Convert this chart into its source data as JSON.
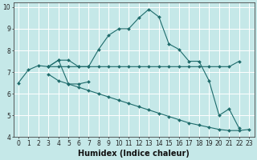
{
  "xlabel": "Humidex (Indice chaleur)",
  "bg_color": "#c5e8e8",
  "line_color": "#1e6b6b",
  "grid_color": "#ffffff",
  "xlim": [
    -0.5,
    23.5
  ],
  "ylim": [
    4,
    10.2
  ],
  "series": [
    {
      "x": [
        0,
        1,
        2,
        3,
        4,
        5,
        6,
        7,
        8,
        9,
        10,
        11,
        12,
        13,
        14,
        15,
        16,
        17,
        18,
        19,
        20,
        21,
        22
      ],
      "y": [
        6.5,
        7.1,
        7.3,
        7.25,
        7.55,
        7.55,
        7.25,
        7.25,
        8.05,
        8.7,
        9.0,
        9.0,
        9.5,
        9.9,
        9.55,
        8.3,
        8.05,
        7.5,
        7.5,
        6.6,
        5.0,
        5.3,
        4.4
      ]
    },
    {
      "x": [
        3,
        4,
        5,
        6,
        7,
        8,
        9,
        10,
        11,
        12,
        13,
        14,
        15,
        16,
        17,
        18,
        19,
        20,
        21,
        22
      ],
      "y": [
        7.25,
        7.25,
        7.25,
        7.25,
        7.25,
        7.25,
        7.25,
        7.25,
        7.25,
        7.25,
        7.25,
        7.25,
        7.25,
        7.25,
        7.25,
        7.25,
        7.25,
        7.25,
        7.25,
        7.5
      ]
    },
    {
      "x": [
        3,
        4,
        5,
        6,
        7,
        8,
        9,
        10,
        11,
        12,
        13,
        14,
        15,
        16,
        17,
        18,
        19,
        20,
        21,
        22,
        23
      ],
      "y": [
        6.9,
        6.6,
        6.45,
        6.3,
        6.15,
        6.0,
        5.85,
        5.7,
        5.55,
        5.4,
        5.25,
        5.1,
        4.95,
        4.8,
        4.65,
        4.55,
        4.45,
        4.35,
        4.3,
        4.3,
        4.35
      ]
    },
    {
      "x": [
        3,
        4,
        5,
        6,
        7
      ],
      "y": [
        7.25,
        7.55,
        6.45,
        6.45,
        6.55
      ]
    }
  ],
  "xtick_vals": [
    0,
    1,
    2,
    3,
    4,
    5,
    6,
    7,
    8,
    9,
    10,
    11,
    12,
    13,
    14,
    15,
    16,
    17,
    18,
    19,
    20,
    21,
    22,
    23
  ],
  "xtick_labels": [
    "0",
    "1",
    "2",
    "3",
    "4",
    "5",
    "6",
    "7",
    "8",
    "9",
    "10",
    "11",
    "12",
    "13",
    "14",
    "15",
    "16",
    "17",
    "18",
    "19",
    "20",
    "21",
    "22",
    "23"
  ],
  "ytick_vals": [
    4,
    5,
    6,
    7,
    8,
    9,
    10
  ],
  "font_size": 5.5,
  "xlabel_fontsize": 7.0
}
